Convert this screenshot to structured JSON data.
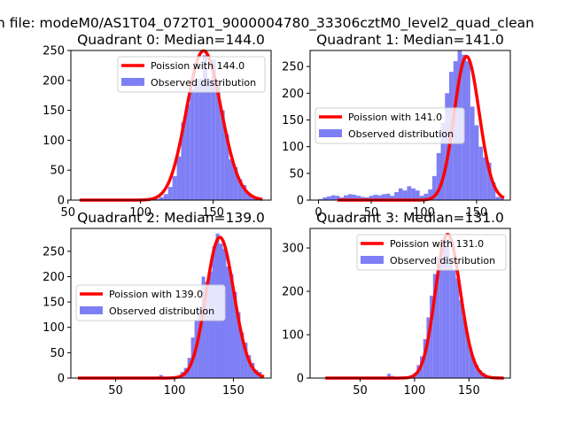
{
  "suptitle": "n file: modeM0/AS1T04_072T01_9000004780_33306cztM0_level2_quad_clean",
  "colors": {
    "hist": "#7f7ff5",
    "curve": "#ff0000",
    "axis": "#000000",
    "legend_bg": "#ffffff"
  },
  "chart_data": [
    {
      "type": "bar",
      "title": "Quadrant 0: Median=144.0",
      "median": 144.0,
      "xlim": [
        52,
        190
      ],
      "ylim": [
        0,
        250
      ],
      "xticks": [
        50,
        100,
        150
      ],
      "yticks": [
        0,
        50,
        100,
        150,
        200,
        250
      ],
      "legend": {
        "position": "top-right",
        "curve": "Poission with 144.0",
        "hist": "Observed distribution"
      },
      "poisson_scale": 7500,
      "hist_bins": [
        [
          110,
          2
        ],
        [
          113,
          5
        ],
        [
          116,
          10
        ],
        [
          119,
          22
        ],
        [
          122,
          40
        ],
        [
          125,
          73
        ],
        [
          128,
          130
        ],
        [
          131,
          160
        ],
        [
          134,
          185
        ],
        [
          137,
          203
        ],
        [
          140,
          203
        ],
        [
          143,
          242
        ],
        [
          146,
          202
        ],
        [
          149,
          235
        ],
        [
          152,
          198
        ],
        [
          155,
          150
        ],
        [
          158,
          110
        ],
        [
          161,
          68
        ],
        [
          164,
          55
        ],
        [
          167,
          35
        ],
        [
          170,
          25
        ],
        [
          173,
          12
        ],
        [
          176,
          5
        ],
        [
          179,
          2
        ]
      ]
    },
    {
      "type": "bar",
      "title": "Quadrant 1: Median=141.0",
      "median": 141.0,
      "xlim": [
        -8,
        182
      ],
      "ylim": [
        0,
        280
      ],
      "xticks": [
        0,
        50,
        100,
        150
      ],
      "yticks": [
        0,
        50,
        100,
        150,
        200,
        250
      ],
      "legend": {
        "position": "center-right",
        "curve": "Poission with 141.0",
        "hist": "Observed distribution"
      },
      "poisson_scale": 8000,
      "hist_bins": [
        [
          0,
          2
        ],
        [
          4,
          5
        ],
        [
          8,
          7
        ],
        [
          12,
          9
        ],
        [
          16,
          8
        ],
        [
          20,
          5
        ],
        [
          24,
          9
        ],
        [
          28,
          11
        ],
        [
          32,
          10
        ],
        [
          36,
          8
        ],
        [
          40,
          6
        ],
        [
          44,
          5
        ],
        [
          48,
          8
        ],
        [
          52,
          10
        ],
        [
          56,
          9
        ],
        [
          60,
          11
        ],
        [
          64,
          12
        ],
        [
          68,
          8
        ],
        [
          72,
          15
        ],
        [
          76,
          22
        ],
        [
          80,
          18
        ],
        [
          84,
          26
        ],
        [
          88,
          22
        ],
        [
          92,
          18
        ],
        [
          96,
          8
        ],
        [
          100,
          12
        ],
        [
          104,
          20
        ],
        [
          108,
          45
        ],
        [
          112,
          88
        ],
        [
          116,
          145
        ],
        [
          120,
          200
        ],
        [
          124,
          240
        ],
        [
          128,
          260
        ],
        [
          132,
          280
        ],
        [
          136,
          272
        ],
        [
          140,
          260
        ],
        [
          144,
          175
        ],
        [
          148,
          140
        ],
        [
          152,
          100
        ],
        [
          156,
          80
        ],
        [
          160,
          70
        ],
        [
          164,
          33
        ],
        [
          168,
          6
        ],
        [
          172,
          8
        ]
      ]
    },
    {
      "type": "bar",
      "title": "Quadrant 2: Median=139.0",
      "median": 139.0,
      "xlim": [
        12,
        182
      ],
      "ylim": [
        0,
        295
      ],
      "xticks": [
        50,
        100,
        150
      ],
      "yticks": [
        0,
        50,
        100,
        150,
        200,
        250
      ],
      "legend": {
        "position": "center-left",
        "curve": "Poission with 139.0",
        "hist": "Observed distribution"
      },
      "poisson_scale": 8200,
      "hist_bins": [
        [
          84,
          3
        ],
        [
          87,
          6
        ],
        [
          102,
          5
        ],
        [
          105,
          12
        ],
        [
          108,
          20
        ],
        [
          111,
          40
        ],
        [
          114,
          80
        ],
        [
          117,
          115
        ],
        [
          120,
          140
        ],
        [
          123,
          200
        ],
        [
          126,
          190
        ],
        [
          129,
          210
        ],
        [
          132,
          260
        ],
        [
          135,
          285
        ],
        [
          138,
          265
        ],
        [
          141,
          255
        ],
        [
          144,
          220
        ],
        [
          147,
          205
        ],
        [
          150,
          170
        ],
        [
          153,
          130
        ],
        [
          156,
          90
        ],
        [
          159,
          70
        ],
        [
          162,
          45
        ],
        [
          165,
          30
        ],
        [
          168,
          16
        ],
        [
          171,
          12
        ]
      ]
    },
    {
      "type": "bar",
      "title": "Quadrant 3: Median=131.0",
      "median": 131.0,
      "xlim": [
        4,
        188
      ],
      "ylim": [
        0,
        345
      ],
      "xticks": [
        50,
        100,
        150
      ],
      "yticks": [
        0,
        100,
        200,
        300
      ],
      "legend": {
        "position": "top-right",
        "curve": "Poission with 131.0",
        "hist": "Observed distribution"
      },
      "poisson_scale": 9500,
      "hist_bins": [
        [
          75,
          10
        ],
        [
          78,
          5
        ],
        [
          84,
          3
        ],
        [
          93,
          4
        ],
        [
          96,
          6
        ],
        [
          99,
          12
        ],
        [
          102,
          30
        ],
        [
          105,
          50
        ],
        [
          108,
          90
        ],
        [
          111,
          140
        ],
        [
          114,
          190
        ],
        [
          117,
          240
        ],
        [
          120,
          280
        ],
        [
          123,
          310
        ],
        [
          126,
          325
        ],
        [
          129,
          320
        ],
        [
          132,
          270
        ],
        [
          135,
          250
        ],
        [
          138,
          230
        ],
        [
          141,
          180
        ],
        [
          144,
          140
        ],
        [
          147,
          105
        ],
        [
          150,
          70
        ],
        [
          153,
          45
        ],
        [
          156,
          30
        ],
        [
          159,
          18
        ],
        [
          162,
          12
        ],
        [
          165,
          6
        ],
        [
          168,
          4
        ]
      ]
    }
  ]
}
